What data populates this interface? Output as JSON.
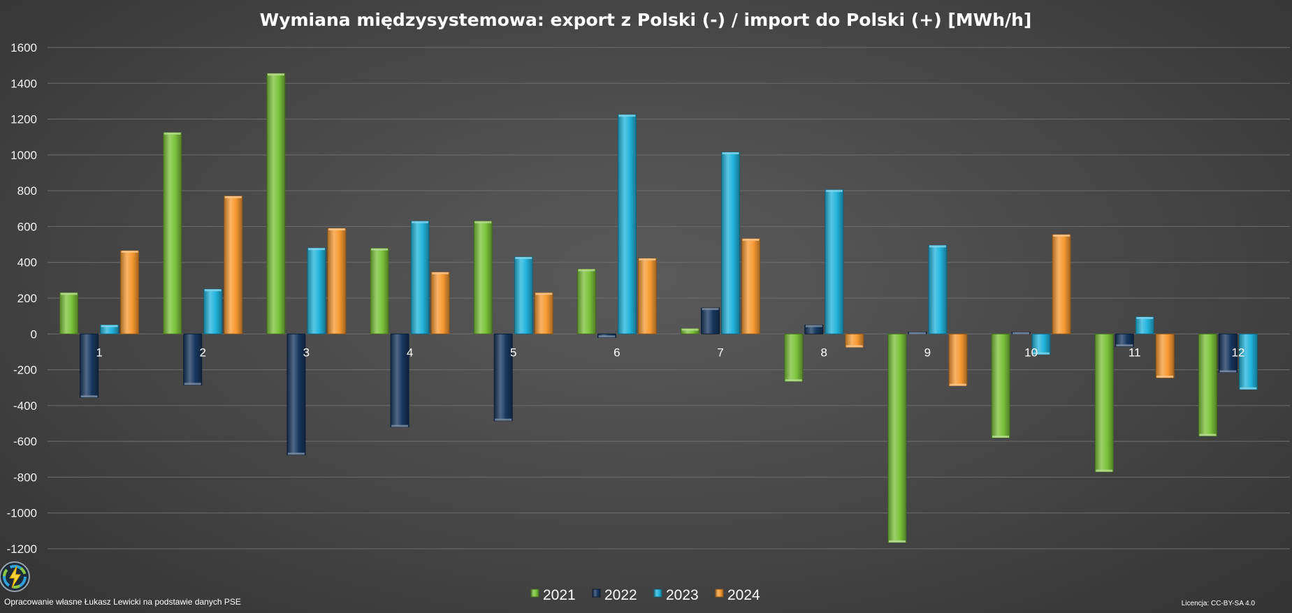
{
  "chart_data": {
    "type": "bar",
    "title": "Wymiana międzysystemowa: export z Polski (-) / import do Polski (+) [MWh/h]",
    "categories": [
      "1",
      "2",
      "3",
      "4",
      "5",
      "6",
      "7",
      "8",
      "9",
      "10",
      "11",
      "12"
    ],
    "ylim": [
      -1200,
      1600
    ],
    "yticks": [
      1600,
      1400,
      1200,
      1000,
      800,
      600,
      400,
      200,
      0,
      -200,
      -400,
      -600,
      -800,
      -1000,
      -1200
    ],
    "grid": true,
    "legend_position": "bottom",
    "series": [
      {
        "name": "2021",
        "color": "#7cc23a",
        "values": [
          230,
          1125,
          1455,
          478,
          630,
          362,
          30,
          -265,
          -1165,
          -580,
          -770,
          -570
        ]
      },
      {
        "name": "2022",
        "color": "#17365d",
        "values": [
          -355,
          -285,
          -675,
          -520,
          -485,
          -20,
          145,
          50,
          10,
          10,
          -70,
          -215
        ]
      },
      {
        "name": "2023",
        "color": "#22b4dc",
        "values": [
          50,
          250,
          480,
          630,
          430,
          1225,
          1015,
          805,
          495,
          -115,
          95,
          -310
        ]
      },
      {
        "name": "2024",
        "color": "#f79a32",
        "values": [
          465,
          770,
          590,
          345,
          230,
          422,
          532,
          -75,
          -290,
          555,
          -245,
          null
        ]
      }
    ]
  },
  "footer": {
    "source": "Opracowanie własne Łukasz Lewicki na podstawie danych PSE",
    "license": "Licencja: CC-BY-SA 4.0"
  },
  "logo": {
    "icon": "lightning-bolt-icon"
  }
}
